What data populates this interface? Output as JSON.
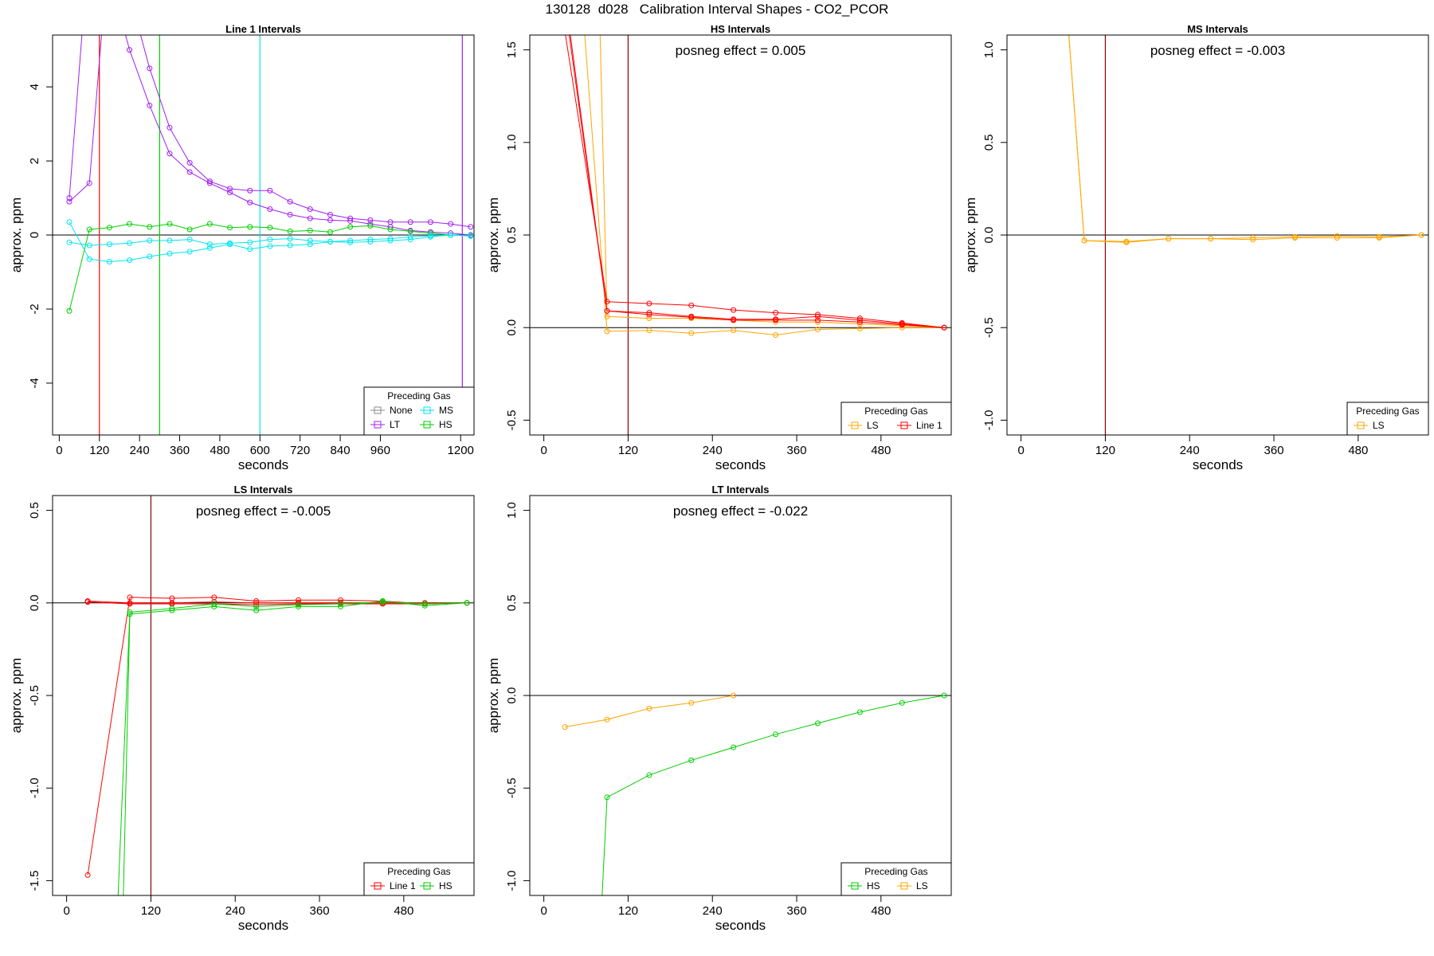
{
  "figure": {
    "title": "130128  d028   Calibration Interval Shapes - CO2_PCOR"
  },
  "colors": {
    "None": "#888888",
    "LT": "#a020f0",
    "MS": "#00e5ee",
    "HS": "#00cd00",
    "LS": "#ffa500",
    "Line 1": "#ff0000",
    "marker": "#8b0000",
    "axis": "#000000"
  },
  "chart_data": [
    {
      "type": "line",
      "title": "Line 1 Intervals",
      "xlabel": "seconds",
      "ylabel": "approx. ppm",
      "xlim": [
        -20,
        1240
      ],
      "ylim": [
        -5.4,
        5.4
      ],
      "xticks": [
        0,
        120,
        240,
        360,
        480,
        600,
        720,
        840,
        960,
        1200
      ],
      "xtick_labels": [
        "0",
        "120",
        "240",
        "360",
        "480",
        "600",
        "720",
        "840",
        "960",
        "1200"
      ],
      "yticks": [
        -4,
        -2,
        0,
        2,
        4
      ],
      "ytick_labels": [
        "-4",
        "-2",
        "0",
        "2",
        "4"
      ],
      "annotation": "",
      "legend": {
        "title": "Preceding Gas",
        "position": "bottom-right",
        "entries": [
          "None",
          "MS",
          "LT",
          "HS"
        ],
        "columns": 2
      },
      "vlines": [
        {
          "x": 120,
          "color": "Line 1"
        },
        {
          "x": 300,
          "color": "HS"
        },
        {
          "x": 600,
          "color": "MS"
        },
        {
          "x": 1205,
          "color": "LT"
        }
      ],
      "series": [
        {
          "name": "LT",
          "color": "LT",
          "x": [
            30,
            90,
            150,
            210,
            270,
            330,
            390,
            450,
            510,
            570,
            630,
            690,
            750,
            810,
            870,
            930,
            990,
            1050,
            1110,
            1170,
            1230
          ],
          "y": [
            0.9,
            1.4,
            8.0,
            6.5,
            4.5,
            2.9,
            1.95,
            1.45,
            1.25,
            1.2,
            1.2,
            0.9,
            0.7,
            0.55,
            0.45,
            0.4,
            0.35,
            0.35,
            0.35,
            0.3,
            0.22
          ]
        },
        {
          "name": "LT",
          "color": "LT",
          "x": [
            30,
            90,
            150,
            210,
            270,
            330,
            390,
            450,
            510,
            570,
            630,
            690,
            750,
            810,
            870,
            930,
            990,
            1050,
            1110,
            1170,
            1230
          ],
          "y": [
            1.0,
            8.0,
            7.0,
            5.0,
            3.5,
            2.2,
            1.7,
            1.4,
            1.15,
            0.88,
            0.7,
            0.55,
            0.45,
            0.4,
            0.38,
            0.3,
            0.22,
            0.12,
            0.08,
            0.05,
            0.0
          ]
        },
        {
          "name": "HS",
          "color": "HS",
          "x": [
            30,
            90,
            150,
            210,
            270,
            330,
            390,
            450,
            510,
            570,
            630,
            690,
            750,
            810,
            870,
            930,
            990,
            1050,
            1110,
            1170,
            1230
          ],
          "y": [
            -2.05,
            0.15,
            0.2,
            0.3,
            0.22,
            0.3,
            0.15,
            0.3,
            0.2,
            0.22,
            0.2,
            0.1,
            0.12,
            0.08,
            0.22,
            0.25,
            0.15,
            0.1,
            0.05,
            0.0,
            -0.02
          ]
        },
        {
          "name": "MS",
          "color": "MS",
          "x": [
            30,
            90,
            150,
            210,
            270,
            330,
            390,
            450,
            510,
            570,
            630,
            690,
            750,
            810,
            870,
            930,
            990,
            1050,
            1110,
            1170,
            1230
          ],
          "y": [
            0.35,
            -0.65,
            -0.72,
            -0.68,
            -0.58,
            -0.5,
            -0.45,
            -0.35,
            -0.25,
            -0.38,
            -0.3,
            -0.28,
            -0.25,
            -0.18,
            -0.15,
            -0.12,
            -0.1,
            -0.05,
            -0.02,
            0.0,
            -0.03
          ]
        },
        {
          "name": "MS",
          "color": "MS",
          "x": [
            30,
            90,
            150,
            210,
            270,
            330,
            390,
            450,
            510,
            570,
            630,
            690,
            750,
            810,
            870,
            930,
            990,
            1050,
            1110,
            1170,
            1230
          ],
          "y": [
            -0.2,
            -0.28,
            -0.25,
            -0.22,
            -0.15,
            -0.15,
            -0.12,
            -0.25,
            -0.22,
            -0.2,
            -0.12,
            -0.1,
            -0.15,
            -0.18,
            -0.2,
            -0.18,
            -0.15,
            -0.12,
            -0.05,
            0.0,
            -0.02
          ]
        }
      ]
    },
    {
      "type": "line",
      "title": "HS Intervals",
      "xlabel": "seconds",
      "ylabel": "approx. ppm",
      "xlim": [
        -20,
        580
      ],
      "ylim": [
        -0.58,
        1.58
      ],
      "xticks": [
        0,
        120,
        240,
        360,
        480
      ],
      "xtick_labels": [
        "0",
        "120",
        "240",
        "360",
        "480"
      ],
      "yticks": [
        -0.5,
        0.0,
        0.5,
        1.0,
        1.5
      ],
      "ytick_labels": [
        "-0.5",
        "0.0",
        "0.5",
        "1.0",
        "1.5"
      ],
      "annotation": "posneg effect = 0.005",
      "legend": {
        "title": "Preceding Gas",
        "position": "bottom-right",
        "entries": [
          "LS",
          "Line 1"
        ],
        "columns": 2
      },
      "vlines": [
        {
          "x": 120,
          "color": "marker"
        }
      ],
      "series": [
        {
          "name": "LS",
          "color": "LS",
          "x": [
            30,
            90,
            150,
            210,
            270,
            330,
            390,
            450,
            510,
            570
          ],
          "y": [
            3.0,
            -0.02,
            -0.015,
            -0.03,
            -0.015,
            -0.04,
            -0.01,
            -0.005,
            0.0,
            0.0
          ]
        },
        {
          "name": "LS",
          "color": "LS",
          "x": [
            80,
            90,
            150,
            210,
            270,
            330,
            390,
            450,
            510,
            570
          ],
          "y": [
            1.6,
            0.06,
            0.05,
            0.05,
            0.04,
            0.03,
            0.03,
            0.02,
            0.01,
            0.0
          ]
        },
        {
          "name": "Line 1",
          "color": "Line 1",
          "x": [
            30,
            90,
            150,
            210,
            270,
            330,
            390,
            450,
            510,
            570
          ],
          "y": [
            1.6,
            0.14,
            0.13,
            0.12,
            0.095,
            0.08,
            0.07,
            0.05,
            0.025,
            0.0
          ]
        },
        {
          "name": "Line 1",
          "color": "Line 1",
          "x": [
            30,
            90,
            150,
            210,
            270,
            330,
            390,
            450,
            510,
            570
          ],
          "y": [
            1.75,
            0.09,
            0.08,
            0.06,
            0.045,
            0.045,
            0.06,
            0.04,
            0.02,
            0.0
          ]
        },
        {
          "name": "Line 1",
          "color": "Line 1",
          "x": [
            30,
            90,
            150,
            210,
            270,
            330,
            390,
            450,
            510,
            570
          ],
          "y": [
            1.8,
            0.09,
            0.07,
            0.055,
            0.04,
            0.04,
            0.04,
            0.03,
            0.015,
            0.0
          ]
        }
      ]
    },
    {
      "type": "line",
      "title": "MS Intervals",
      "xlabel": "seconds",
      "ylabel": "approx. ppm",
      "xlim": [
        -20,
        580
      ],
      "ylim": [
        -1.08,
        1.08
      ],
      "xticks": [
        0,
        120,
        240,
        360,
        480
      ],
      "xtick_labels": [
        "0",
        "120",
        "240",
        "360",
        "480"
      ],
      "yticks": [
        -1.0,
        -0.5,
        0.0,
        0.5,
        1.0
      ],
      "ytick_labels": [
        "-1.0",
        "-0.5",
        "0.0",
        "0.5",
        "1.0"
      ],
      "annotation": "posneg effect = -0.003",
      "legend": {
        "title": "Preceding Gas",
        "position": "bottom-right",
        "entries": [
          "LS"
        ],
        "columns": 1
      },
      "vlines": [
        {
          "x": 120,
          "color": "marker"
        }
      ],
      "series": [
        {
          "name": "LS",
          "color": "LS",
          "x": [
            30,
            90,
            150,
            210,
            270,
            330,
            390,
            450,
            510,
            570
          ],
          "y": [
            3.0,
            -0.03,
            -0.035,
            -0.02,
            -0.02,
            -0.015,
            -0.01,
            -0.005,
            -0.01,
            0.0
          ]
        },
        {
          "name": "LS",
          "color": "LS",
          "x": [
            30,
            90,
            150,
            210,
            270,
            330,
            390,
            450,
            510,
            570
          ],
          "y": [
            3.0,
            -0.03,
            -0.04,
            -0.02,
            -0.02,
            -0.025,
            -0.015,
            -0.015,
            -0.015,
            0.0
          ]
        }
      ]
    },
    {
      "type": "line",
      "title": "LS Intervals",
      "xlabel": "seconds",
      "ylabel": "approx. ppm",
      "xlim": [
        -20,
        580
      ],
      "ylim": [
        -1.58,
        0.58
      ],
      "xticks": [
        0,
        120,
        240,
        360,
        480
      ],
      "xtick_labels": [
        "0",
        "120",
        "240",
        "360",
        "480"
      ],
      "yticks": [
        -1.5,
        -1.0,
        -0.5,
        0.0,
        0.5
      ],
      "ytick_labels": [
        "-1.5",
        "-1.0",
        "-0.5",
        "0.0",
        "0.5"
      ],
      "annotation": "posneg effect = -0.005",
      "legend": {
        "title": "Preceding Gas",
        "position": "bottom-right",
        "entries": [
          "Line 1",
          "HS"
        ],
        "columns": 2
      },
      "vlines": [
        {
          "x": 120,
          "color": "marker"
        }
      ],
      "series": [
        {
          "name": "Line 1",
          "color": "Line 1",
          "x": [
            30,
            90,
            150,
            210,
            270,
            330,
            390,
            450,
            510,
            570
          ],
          "y": [
            -1.47,
            0.03,
            0.025,
            0.03,
            0.01,
            0.015,
            0.015,
            0.01,
            -0.005,
            0.0
          ]
        },
        {
          "name": "Line 1",
          "color": "Line 1",
          "x": [
            30,
            90,
            150,
            210,
            270,
            330,
            390,
            450,
            510,
            570
          ],
          "y": [
            0.01,
            0.0,
            0.0,
            0.005,
            0.0,
            0.0,
            0.0,
            0.0,
            0.0,
            0.0
          ]
        },
        {
          "name": "Line 1",
          "color": "Line 1",
          "x": [
            30,
            90,
            150,
            210,
            270,
            330,
            390,
            450,
            510,
            570
          ],
          "y": [
            0.005,
            -0.005,
            -0.005,
            -0.005,
            -0.01,
            -0.005,
            -0.005,
            -0.005,
            -0.005,
            0.0
          ]
        },
        {
          "name": "HS",
          "color": "HS",
          "x": [
            80,
            90,
            150,
            210,
            270,
            330,
            390,
            450,
            510,
            570
          ],
          "y": [
            -1.7,
            -0.06,
            -0.04,
            -0.02,
            -0.04,
            -0.02,
            -0.02,
            0.01,
            -0.015,
            0.0
          ]
        },
        {
          "name": "HS",
          "color": "HS",
          "x": [
            72,
            90,
            150,
            210,
            270,
            330,
            390,
            450,
            510,
            570
          ],
          "y": [
            -1.7,
            -0.05,
            -0.03,
            -0.005,
            -0.02,
            -0.01,
            -0.005,
            0.005,
            -0.005,
            0.0
          ]
        }
      ]
    },
    {
      "type": "line",
      "title": "LT Intervals",
      "xlabel": "seconds",
      "ylabel": "approx. ppm",
      "xlim": [
        -20,
        580
      ],
      "ylim": [
        -1.08,
        1.08
      ],
      "xticks": [
        0,
        120,
        240,
        360,
        480
      ],
      "xtick_labels": [
        "0",
        "120",
        "240",
        "360",
        "480"
      ],
      "yticks": [
        -1.0,
        -0.5,
        0.0,
        0.5,
        1.0
      ],
      "ytick_labels": [
        "-1.0",
        "-0.5",
        "0.0",
        "0.5",
        "1.0"
      ],
      "annotation": "posneg effect = -0.022",
      "legend": {
        "title": "Preceding Gas",
        "position": "bottom-right",
        "entries": [
          "HS",
          "LS"
        ],
        "columns": 2
      },
      "vlines": [],
      "series": [
        {
          "name": "LS",
          "color": "LS",
          "x": [
            30,
            90,
            150,
            210,
            270
          ],
          "y": [
            -0.17,
            -0.13,
            -0.07,
            -0.04,
            0.0
          ]
        },
        {
          "name": "HS",
          "color": "HS",
          "x": [
            80,
            90,
            150,
            210,
            270,
            330,
            390,
            450,
            510,
            570
          ],
          "y": [
            -1.3,
            -0.55,
            -0.43,
            -0.35,
            -0.28,
            -0.21,
            -0.15,
            -0.09,
            -0.04,
            0.0
          ]
        }
      ]
    }
  ]
}
